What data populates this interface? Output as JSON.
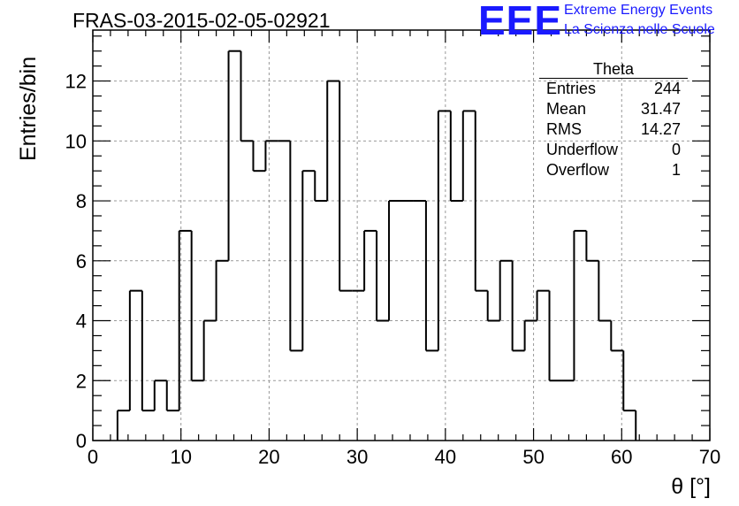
{
  "header": {
    "run_title": "FRAS-03-2015-02-05-02921",
    "logo_text": "EEE",
    "logo_line1": "Extreme Energy Events",
    "logo_line2": "La Scienza nelle Scuole"
  },
  "stats_box": {
    "title": "Theta",
    "rows": [
      {
        "label": "Entries",
        "value": "244"
      },
      {
        "label": "Mean",
        "value": "31.47"
      },
      {
        "label": "RMS",
        "value": "14.27"
      },
      {
        "label": "Underflow",
        "value": "0"
      },
      {
        "label": "Overflow",
        "value": "1"
      }
    ]
  },
  "colors": {
    "logo": "#1a1aff",
    "line": "#000000",
    "grid": "#999999"
  },
  "chart_data": {
    "type": "histogram",
    "title": "FRAS-03-2015-02-05-02921",
    "xlabel": "θ [°]",
    "ylabel": "Entries/bin",
    "xlim": [
      0,
      70
    ],
    "ylim": [
      0,
      13.7
    ],
    "bin_width": 1.4,
    "grid": true,
    "x_ticks": [
      0,
      10,
      20,
      30,
      40,
      50,
      60,
      70
    ],
    "y_ticks": [
      0,
      2,
      4,
      6,
      8,
      10,
      12
    ],
    "bin_edges": [
      2.8,
      4.2,
      5.6,
      7.0,
      8.4,
      9.8,
      11.2,
      12.6,
      14.0,
      15.4,
      16.8,
      18.2,
      19.6,
      21.0,
      22.4,
      23.8,
      25.2,
      26.6,
      28.0,
      29.4,
      30.8,
      32.2,
      33.6,
      35.0,
      36.4,
      37.8,
      39.2,
      40.6,
      42.0,
      43.4,
      44.8,
      46.2,
      47.6,
      49.0,
      50.4,
      51.8,
      53.2,
      54.6,
      56.0,
      57.4,
      58.8,
      60.2,
      61.6
    ],
    "counts": [
      1,
      5,
      1,
      2,
      1,
      7,
      2,
      4,
      6,
      13,
      10,
      9,
      10,
      10,
      3,
      9,
      8,
      12,
      5,
      5,
      7,
      4,
      8,
      8,
      8,
      3,
      11,
      8,
      11,
      5,
      4,
      6,
      3,
      4,
      5,
      2,
      2,
      7,
      6,
      4,
      3,
      1
    ]
  }
}
